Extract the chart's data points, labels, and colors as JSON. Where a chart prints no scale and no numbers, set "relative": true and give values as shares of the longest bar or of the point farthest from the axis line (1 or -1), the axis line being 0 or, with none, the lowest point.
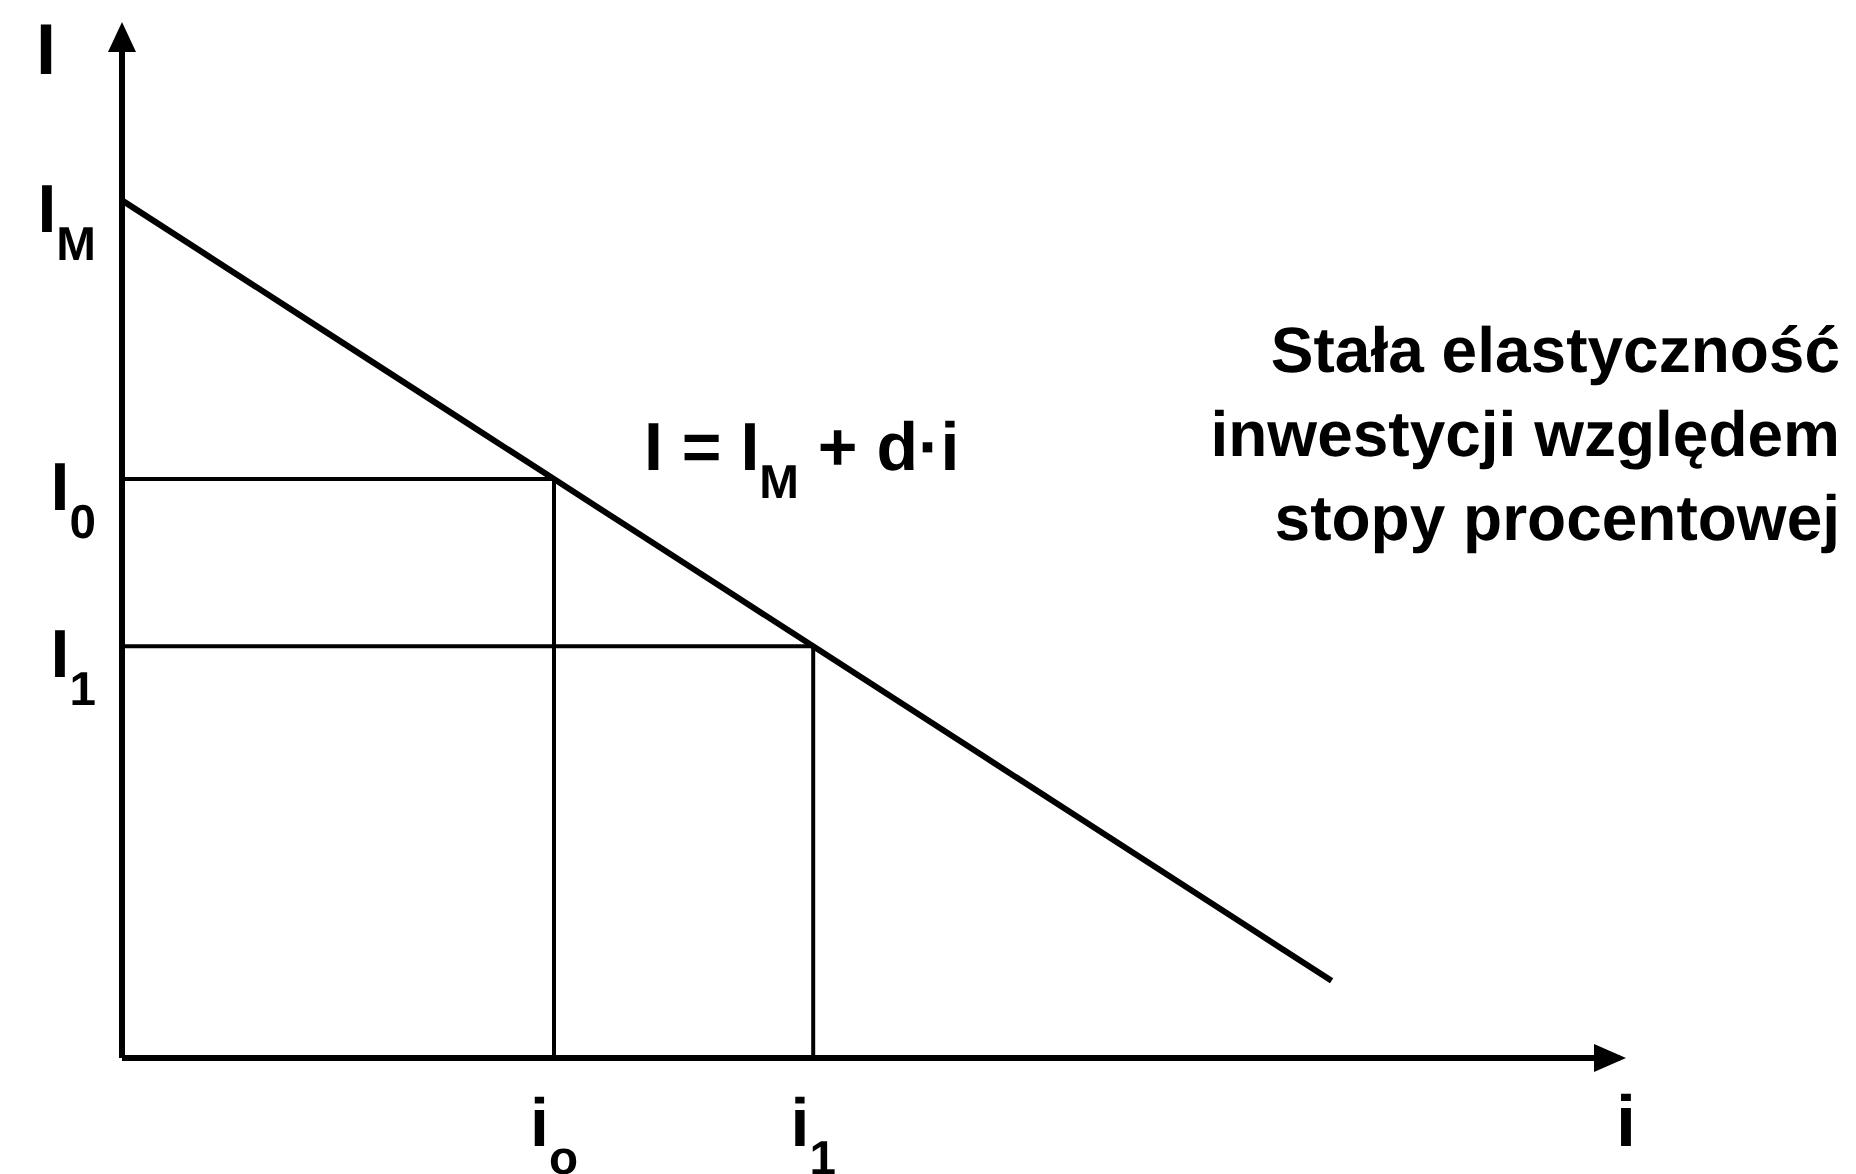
{
  "chart_data": {
    "type": "line",
    "title": "Stała elastyczność inwestycji względem stopy procentowej",
    "xlabel": "i",
    "ylabel": "I",
    "relative": true,
    "categories": [
      null,
      null,
      null,
      null,
      null,
      "i$_{o}$",
      null,
      null,
      "i$_{1}$",
      null,
      null,
      null,
      null,
      null,
      null
    ],
    "series": [
      {
        "color": "#000000",
        "values": [
          1,
          0.935,
          0.87,
          0.805,
          0.74,
          0.675,
          0.61,
          0.545,
          0.48,
          0.415,
          0.35,
          0.285,
          0.22,
          0.155,
          0.09
        ]
      }
    ],
    "ref_lines": [
      {
        "axis": "y",
        "value": 0.675,
        "label": "I$_{0}$",
        "color": "#000000"
      },
      {
        "axis": "y",
        "value": 0.48,
        "label": "I$_{1}$",
        "color": "#000000"
      },
      {
        "axis": "x",
        "value": "i$_{o}$",
        "color": "#000000"
      },
      {
        "axis": "x",
        "value": "i$_{1}$",
        "color": "#000000"
      }
    ],
    "annotations": [
      "I = I$_{M}$ + d·i",
      "I$_{M}$"
    ]
  }
}
